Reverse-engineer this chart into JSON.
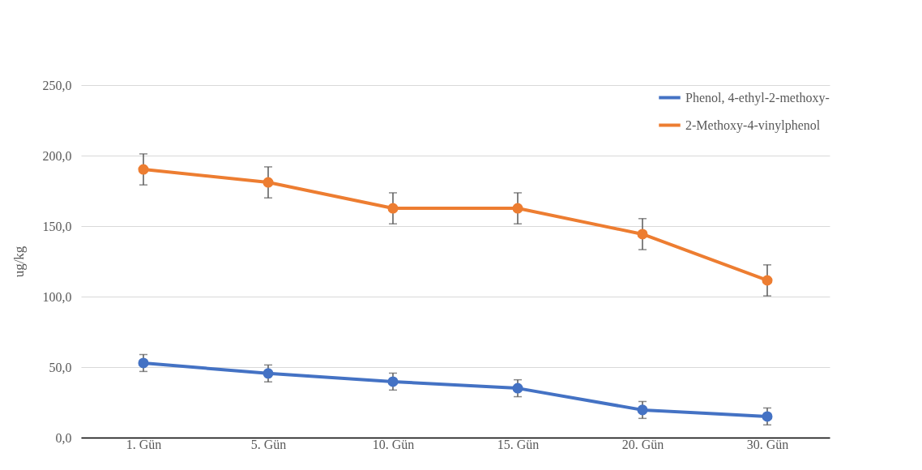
{
  "chart_data": {
    "type": "line",
    "ylabel": "ug/kg",
    "categories": [
      "1. Gün",
      "5. Gün",
      "10. Gün",
      "15. Gün",
      "20. Gün",
      "30. Gün"
    ],
    "series": [
      {
        "name": "Phenol, 4-ethyl-2-methoxy-",
        "color": "#4472c4",
        "values": [
          52.9,
          45.5,
          39.7,
          35.0,
          19.6,
          15.0
        ],
        "errors": [
          6,
          6,
          6,
          6,
          6,
          6
        ]
      },
      {
        "name": "2-Methoxy-4-vinylphenol",
        "color": "#ed7d31",
        "values": [
          190.2,
          181.0,
          162.6,
          162.6,
          144.3,
          111.5
        ],
        "errors": [
          11,
          11,
          11,
          11,
          11,
          11
        ]
      }
    ],
    "ylim": [
      0,
      250
    ],
    "yticks": [
      {
        "value": 0,
        "label": "0,0"
      },
      {
        "value": 50,
        "label": "50,0"
      },
      {
        "value": 100,
        "label": "100,0"
      },
      {
        "value": 150,
        "label": "150,0"
      },
      {
        "value": 200,
        "label": "200,0"
      },
      {
        "value": 250,
        "label": "250,0"
      }
    ],
    "grid": "y",
    "legend": "top right",
    "marker": "circle",
    "line_style": "solid"
  }
}
